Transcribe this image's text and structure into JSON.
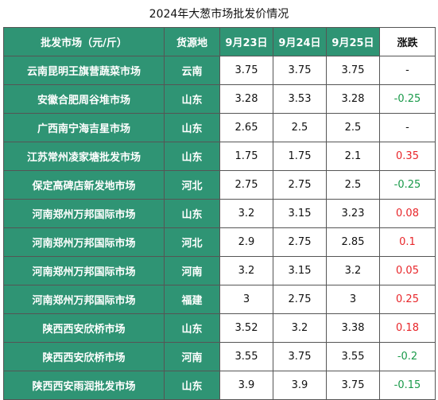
{
  "title": "2024年大葱市场批发价情况",
  "headers": {
    "market": "批发市场（元/斤）",
    "origin": "货源地",
    "d1": "9月23日",
    "d2": "9月24日",
    "d3": "9月25日",
    "change": "涨跌"
  },
  "colors": {
    "header_green": "#2f9474",
    "up_red": "#e8262a",
    "down_green": "#1a9a4a"
  },
  "rows": [
    {
      "market": "云南昆明王旗营蔬菜市场",
      "origin": "云南",
      "d1": "3.75",
      "d2": "3.75",
      "d3": "3.75",
      "change": "-"
    },
    {
      "market": "安徽合肥周谷堆市场",
      "origin": "山东",
      "d1": "3.28",
      "d2": "3.53",
      "d3": "3.28",
      "change": "-0.25"
    },
    {
      "market": "广西南宁海吉星市场",
      "origin": "山东",
      "d1": "2.65",
      "d2": "2.5",
      "d3": "2.5",
      "change": "-"
    },
    {
      "market": "江苏常州凌家塘批发市场",
      "origin": "山东",
      "d1": "1.75",
      "d2": "1.75",
      "d3": "2.1",
      "change": "0.35"
    },
    {
      "market": "保定高碑店新发地市场",
      "origin": "河北",
      "d1": "2.75",
      "d2": "2.75",
      "d3": "2.5",
      "change": "-0.25"
    },
    {
      "market": "河南郑州万邦国际市场",
      "origin": "山东",
      "d1": "3.2",
      "d2": "3.15",
      "d3": "3.23",
      "change": "0.08"
    },
    {
      "market": "河南郑州万邦国际市场",
      "origin": "河北",
      "d1": "2.9",
      "d2": "2.75",
      "d3": "2.85",
      "change": "0.1"
    },
    {
      "market": "河南郑州万邦国际市场",
      "origin": "河南",
      "d1": "3.2",
      "d2": "3.15",
      "d3": "3.2",
      "change": "0.05"
    },
    {
      "market": "河南郑州万邦国际市场",
      "origin": "福建",
      "d1": "3",
      "d2": "2.75",
      "d3": "3",
      "change": "0.25"
    },
    {
      "market": "陕西西安欣桥市场",
      "origin": "山东",
      "d1": "3.52",
      "d2": "3.2",
      "d3": "3.38",
      "change": "0.18"
    },
    {
      "market": "陕西西安欣桥市场",
      "origin": "河南",
      "d1": "3.55",
      "d2": "3.75",
      "d3": "3.55",
      "change": "-0.2"
    },
    {
      "market": "陕西西安雨润批发市场",
      "origin": "山东",
      "d1": "3.9",
      "d2": "3.9",
      "d3": "3.75",
      "change": "-0.15"
    }
  ]
}
